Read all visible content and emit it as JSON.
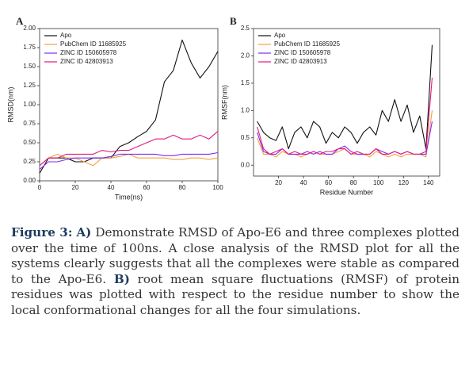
{
  "chart_data": [
    {
      "type": "line",
      "label": "A",
      "xlabel": "Time(ns)",
      "ylabel": "RMSD(nm)",
      "xlim": [
        0,
        100
      ],
      "xticks": [
        0,
        20,
        40,
        60,
        80,
        100
      ],
      "ylim": [
        0,
        2
      ],
      "yticks": [
        {
          "value": 0,
          "label": "0.00"
        },
        0.25,
        {
          "value": 0.5,
          "label": "0.50"
        },
        0.75,
        {
          "value": 1,
          "label": "1.00"
        },
        1.25,
        {
          "value": 1.5,
          "label": "1.50"
        },
        1.75,
        {
          "value": 2,
          "label": "2.00"
        }
      ],
      "legend": "upper left",
      "x": [
        0,
        5,
        10,
        15,
        20,
        25,
        30,
        35,
        40,
        45,
        50,
        55,
        60,
        65,
        70,
        75,
        80,
        85,
        90,
        95,
        100
      ],
      "series": [
        {
          "name": "Apo",
          "color": "#111111",
          "values": [
            0.1,
            0.3,
            0.3,
            0.3,
            0.25,
            0.25,
            0.3,
            0.3,
            0.3,
            0.45,
            0.5,
            0.58,
            0.65,
            0.8,
            1.3,
            1.45,
            1.85,
            1.55,
            1.35,
            1.5,
            1.7
          ]
        },
        {
          "name": "PubChem ID 11685925",
          "color": "#f5a03a",
          "values": [
            0.2,
            0.3,
            0.35,
            0.3,
            0.3,
            0.25,
            0.2,
            0.3,
            0.3,
            0.32,
            0.35,
            0.3,
            0.3,
            0.3,
            0.3,
            0.28,
            0.28,
            0.3,
            0.3,
            0.28,
            0.3
          ]
        },
        {
          "name": "ZINC ID 150605978",
          "color": "#7a2ef0",
          "values": [
            0.15,
            0.25,
            0.25,
            0.28,
            0.3,
            0.3,
            0.3,
            0.3,
            0.32,
            0.35,
            0.35,
            0.35,
            0.35,
            0.35,
            0.33,
            0.33,
            0.35,
            0.35,
            0.35,
            0.35,
            0.37
          ]
        },
        {
          "name": "ZINC ID 42803913",
          "color": "#e3187f",
          "values": [
            0.2,
            0.3,
            0.3,
            0.35,
            0.35,
            0.35,
            0.35,
            0.4,
            0.38,
            0.4,
            0.4,
            0.45,
            0.5,
            0.55,
            0.55,
            0.6,
            0.55,
            0.55,
            0.6,
            0.55,
            0.65
          ]
        }
      ]
    },
    {
      "type": "line",
      "label": "B",
      "xlabel": "Residue Number",
      "ylabel": "RMSF(nm)",
      "xlim": [
        0,
        149
      ],
      "xticks": [
        20,
        40,
        60,
        80,
        100,
        120,
        140
      ],
      "ylim": [
        -0.2,
        2.5
      ],
      "yticks": [
        {
          "value": 0,
          "label": "0.0"
        },
        0.5,
        {
          "value": 1,
          "label": "1.0"
        },
        1.5,
        {
          "value": 2,
          "label": "2.0"
        },
        2.5
      ],
      "legend": "upper left",
      "x": [
        3,
        8,
        13,
        18,
        23,
        28,
        33,
        38,
        43,
        48,
        53,
        58,
        63,
        68,
        73,
        78,
        83,
        88,
        93,
        98,
        103,
        108,
        113,
        118,
        123,
        128,
        133,
        138,
        143
      ],
      "series": [
        {
          "name": "Apo",
          "color": "#111111",
          "values": [
            0.8,
            0.6,
            0.5,
            0.45,
            0.7,
            0.3,
            0.6,
            0.7,
            0.5,
            0.8,
            0.7,
            0.4,
            0.6,
            0.5,
            0.7,
            0.6,
            0.4,
            0.6,
            0.7,
            0.55,
            1.0,
            0.8,
            1.2,
            0.8,
            1.1,
            0.6,
            0.9,
            0.3,
            2.2
          ]
        },
        {
          "name": "PubChem ID 11685925",
          "color": "#f5a03a",
          "values": [
            0.5,
            0.2,
            0.2,
            0.15,
            0.25,
            0.2,
            0.2,
            0.15,
            0.2,
            0.25,
            0.2,
            0.2,
            0.2,
            0.25,
            0.3,
            0.2,
            0.2,
            0.2,
            0.15,
            0.25,
            0.2,
            0.15,
            0.2,
            0.15,
            0.2,
            0.2,
            0.2,
            0.15,
            1.0
          ]
        },
        {
          "name": "ZINC ID 150605978",
          "color": "#7a2ef0",
          "values": [
            0.6,
            0.25,
            0.2,
            0.2,
            0.3,
            0.2,
            0.2,
            0.2,
            0.25,
            0.2,
            0.25,
            0.2,
            0.2,
            0.3,
            0.35,
            0.25,
            0.2,
            0.2,
            0.2,
            0.3,
            0.25,
            0.2,
            0.25,
            0.2,
            0.25,
            0.2,
            0.2,
            0.2,
            0.8
          ]
        },
        {
          "name": "ZINC ID 42803913",
          "color": "#e3187f",
          "values": [
            0.7,
            0.3,
            0.2,
            0.25,
            0.3,
            0.2,
            0.25,
            0.2,
            0.2,
            0.25,
            0.2,
            0.25,
            0.25,
            0.3,
            0.3,
            0.2,
            0.25,
            0.2,
            0.2,
            0.3,
            0.2,
            0.2,
            0.25,
            0.2,
            0.25,
            0.2,
            0.2,
            0.25,
            1.6
          ]
        }
      ]
    }
  ],
  "caption": {
    "label": "Figure 3:",
    "part_a_label": "A)",
    "part_a_text": "Demonstrate RMSD of Apo-E6 and three complexes plotted over the time of 100ns. A close analysis of the RMSD plot for all the systems clearly suggests that all the complexes were stable as compared to the Apo-E6.",
    "part_b_label": "B)",
    "part_b_text": "root mean square fluctuations (RMSF) of protein residues was plotted with respect to the residue number to show the local conformational changes for all the four simulations."
  }
}
